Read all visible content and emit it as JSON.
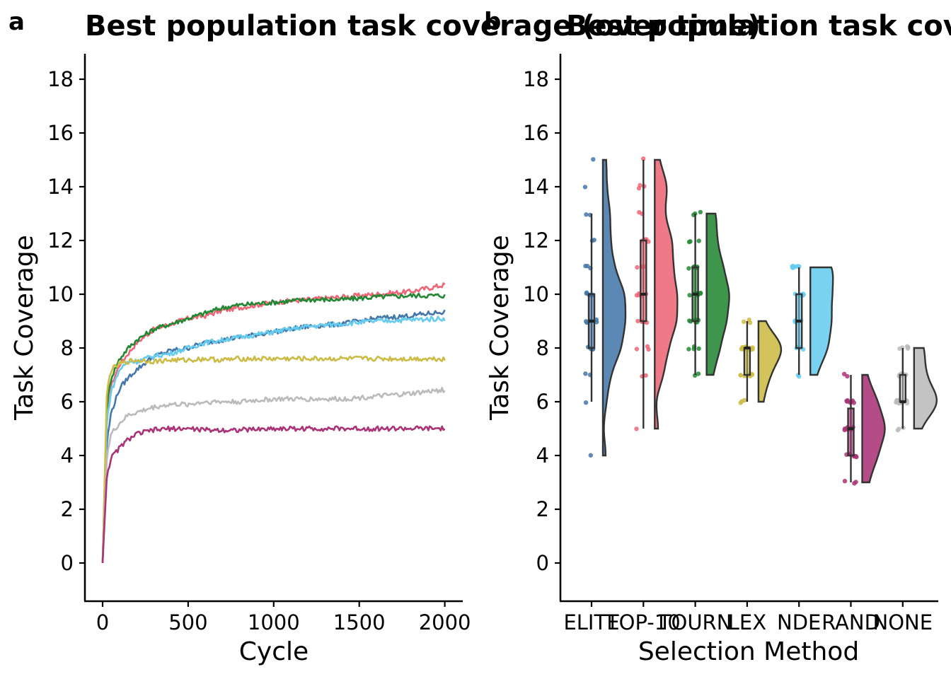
{
  "figure": {
    "panel_a_letter": "a",
    "panel_b_letter": "b"
  },
  "colors": {
    "ELITE": "#4477AA",
    "TOP-10": "#EE6677",
    "TOURN": "#228833",
    "LEX": "#CCBB44",
    "NDE": "#66CCEE",
    "RAND": "#AA3377",
    "NONE": "#BBBBBB"
  },
  "chart_data": [
    {
      "type": "line",
      "title": "Best population task coverage (over time)",
      "xlabel": "Cycle",
      "ylabel": "Task Coverage",
      "xlim": [
        -100,
        2100
      ],
      "ylim": [
        -1.4,
        19
      ],
      "xticks": [
        "0",
        "500",
        "1000",
        "1500",
        "2000"
      ],
      "yticks": [
        "0",
        "2",
        "4",
        "6",
        "8",
        "10",
        "12",
        "14",
        "16",
        "18"
      ],
      "grid": false,
      "x": [
        0,
        25,
        50,
        100,
        150,
        200,
        300,
        400,
        500,
        600,
        700,
        800,
        1000,
        1200,
        1400,
        1600,
        1800,
        2000
      ],
      "series": [
        {
          "key": "TOP-10",
          "values": [
            0,
            5.5,
            6.6,
            7.4,
            7.8,
            8.2,
            8.7,
            8.9,
            9.1,
            9.2,
            9.4,
            9.5,
            9.7,
            9.8,
            9.9,
            10.0,
            10.1,
            10.35
          ]
        },
        {
          "key": "TOURN",
          "values": [
            0,
            5.9,
            6.9,
            7.6,
            8.0,
            8.3,
            8.7,
            8.9,
            9.1,
            9.3,
            9.5,
            9.6,
            9.7,
            9.8,
            9.8,
            9.9,
            9.95,
            9.95
          ]
        },
        {
          "key": "ELITE",
          "values": [
            0,
            4.5,
            5.6,
            6.5,
            6.9,
            7.2,
            7.7,
            7.9,
            8.0,
            8.2,
            8.3,
            8.4,
            8.6,
            8.8,
            8.9,
            9.1,
            9.2,
            9.35
          ]
        },
        {
          "key": "NDE",
          "values": [
            0,
            5.3,
            6.4,
            7.2,
            7.5,
            7.5,
            7.7,
            7.8,
            8.0,
            8.2,
            8.3,
            8.4,
            8.6,
            8.8,
            8.9,
            9.0,
            9.05,
            9.1
          ]
        },
        {
          "key": "LEX",
          "values": [
            0,
            6.4,
            7.2,
            7.4,
            7.5,
            7.55,
            7.5,
            7.55,
            7.55,
            7.6,
            7.55,
            7.6,
            7.6,
            7.6,
            7.6,
            7.6,
            7.6,
            7.6
          ]
        },
        {
          "key": "NONE",
          "values": [
            0,
            4.0,
            4.8,
            5.2,
            5.5,
            5.6,
            5.8,
            5.9,
            5.9,
            6.0,
            6.0,
            6.0,
            6.1,
            6.1,
            6.1,
            6.2,
            6.3,
            6.45
          ]
        },
        {
          "key": "RAND",
          "values": [
            0,
            3.3,
            3.9,
            4.3,
            4.6,
            4.8,
            4.95,
            5.0,
            5.0,
            4.95,
            4.95,
            4.95,
            5.0,
            5.0,
            5.0,
            5.0,
            5.0,
            5.0
          ]
        }
      ]
    },
    {
      "type": "raincloud",
      "title": "Best population task coverage",
      "xlabel": "Selection Method",
      "ylabel": "Task Coverage",
      "ylim": [
        -1.4,
        19
      ],
      "yticks": [
        "0",
        "2",
        "4",
        "6",
        "8",
        "10",
        "12",
        "14",
        "16",
        "18"
      ],
      "grid": false,
      "categories": [
        "ELITE",
        "TOP-10",
        "TOURN",
        "LEX",
        "NDE",
        "RAND",
        "NONE"
      ],
      "boxes": [
        {
          "min": 6,
          "q1": 8,
          "median": 9,
          "q3": 10,
          "max": 13
        },
        {
          "min": 5,
          "q1": 9,
          "median": 10,
          "q3": 12,
          "max": 15
        },
        {
          "min": 7,
          "q1": 9,
          "median": 10,
          "q3": 11,
          "max": 13
        },
        {
          "min": 6,
          "q1": 7,
          "median": 8,
          "q3": 8,
          "max": 9
        },
        {
          "min": 7,
          "q1": 8,
          "median": 9,
          "q3": 10,
          "max": 11
        },
        {
          "min": 3,
          "q1": 4,
          "median": 5,
          "q3": 5.75,
          "max": 7
        },
        {
          "min": 5,
          "q1": 6,
          "median": 6,
          "q3": 7,
          "max": 8
        }
      ],
      "points": [
        [
          4,
          6,
          7,
          7,
          8,
          8,
          8,
          8,
          8,
          9,
          9,
          9,
          9,
          9,
          9,
          10,
          10,
          10,
          10,
          10,
          10,
          11,
          11,
          11,
          12,
          12,
          13,
          13,
          14,
          15
        ],
        [
          5,
          7,
          7,
          8,
          8,
          8,
          9,
          9,
          9,
          9,
          9,
          10,
          10,
          10,
          10,
          10,
          11,
          11,
          11,
          11,
          12,
          12,
          12,
          12,
          13,
          13,
          14,
          14,
          14,
          15
        ],
        [
          7,
          7,
          8,
          8,
          8,
          8,
          9,
          9,
          9,
          9,
          9,
          9,
          10,
          10,
          10,
          10,
          10,
          10,
          10,
          11,
          11,
          11,
          11,
          11,
          12,
          12,
          12,
          13,
          13,
          13
        ],
        [
          6,
          6,
          6,
          7,
          7,
          7,
          7,
          7,
          7,
          7,
          8,
          8,
          8,
          8,
          8,
          8,
          8,
          8,
          8,
          8,
          8,
          8,
          8,
          8,
          8,
          8,
          8,
          9,
          9,
          9
        ],
        [
          7,
          7,
          8,
          8,
          8,
          8,
          8,
          8,
          9,
          9,
          9,
          9,
          9,
          9,
          9,
          10,
          10,
          10,
          10,
          10,
          10,
          10,
          11,
          11,
          11,
          11,
          11,
          11,
          11,
          11
        ],
        [
          3,
          3,
          3,
          4,
          4,
          4,
          4,
          4,
          4,
          4,
          5,
          5,
          5,
          5,
          5,
          5,
          5,
          5,
          5,
          5,
          5,
          6,
          6,
          6,
          6,
          6,
          6,
          6,
          7,
          7
        ],
        [
          5,
          5,
          5,
          6,
          6,
          6,
          6,
          6,
          6,
          6,
          6,
          6,
          6,
          6,
          6,
          6,
          6,
          6,
          7,
          7,
          7,
          7,
          7,
          7,
          8,
          8,
          8,
          8,
          8,
          8
        ]
      ]
    }
  ]
}
